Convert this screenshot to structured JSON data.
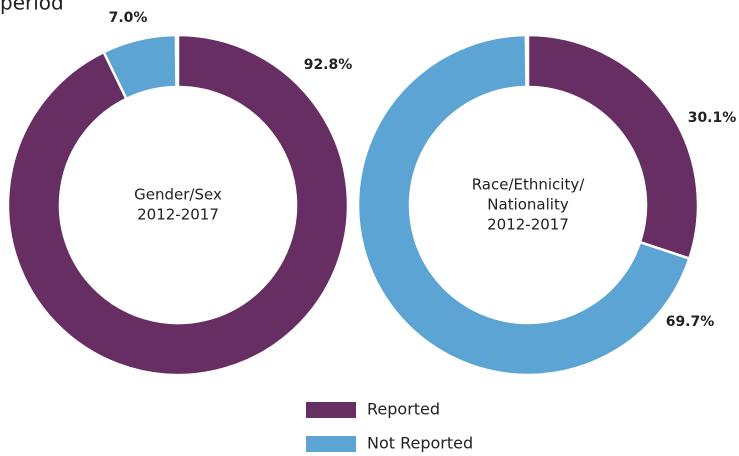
{
  "chart_data": [
    {
      "type": "pie",
      "title": "period",
      "categories": [
        "Reported",
        "Not Reported"
      ],
      "values": [
        92.8,
        7.0
      ],
      "value_labels": [
        "92.8%",
        "7.0%"
      ],
      "colors": [
        "#662e63",
        "#5ba4d4"
      ],
      "center_label": [
        "Gender/Sex",
        "2012-2017"
      ]
    },
    {
      "type": "pie",
      "categories": [
        "Reported",
        "Not Reported"
      ],
      "values": [
        30.1,
        69.7
      ],
      "value_labels": [
        "30.1%",
        "69.7%"
      ],
      "colors": [
        "#662e63",
        "#5ba4d4"
      ],
      "center_label": [
        "Race/Ethnicity/",
        "Nationality",
        "2012-2017"
      ]
    }
  ]
}
